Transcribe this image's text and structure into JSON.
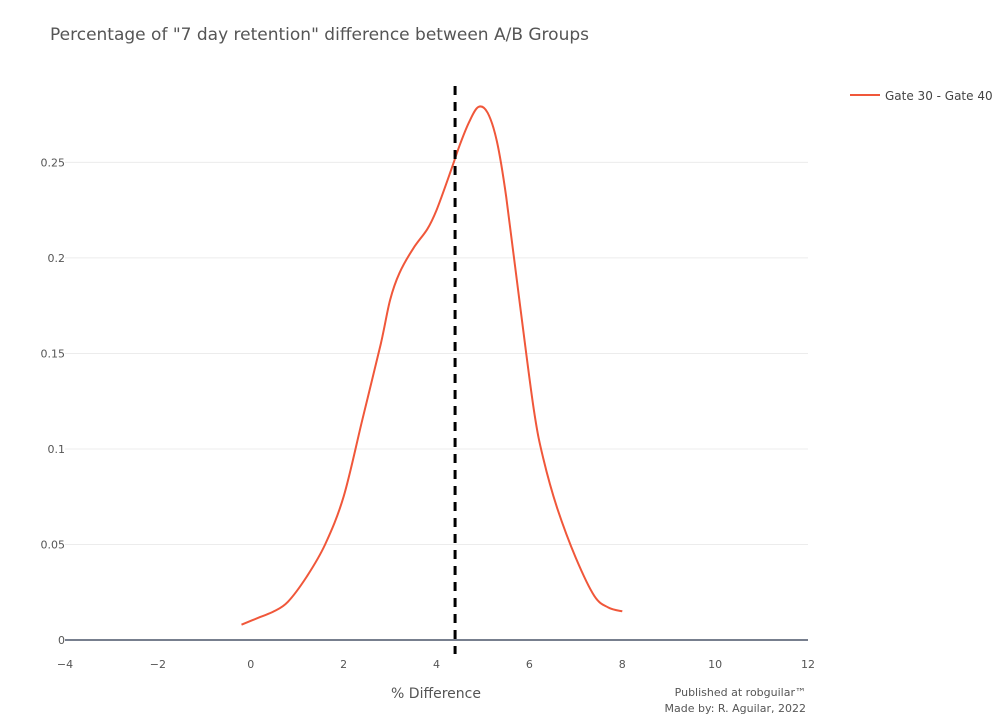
{
  "chart_data": {
    "type": "line",
    "title": "Percentage of \"7 day retention\" difference between A/B Groups",
    "xlabel": "% Difference",
    "ylabel": "",
    "xlim": [
      -4,
      12
    ],
    "ylim": [
      0,
      0.29
    ],
    "x_ticks": [
      -4,
      -2,
      0,
      2,
      4,
      6,
      8,
      10,
      12
    ],
    "x_tick_labels": [
      "−4",
      "−2",
      "0",
      "2",
      "4",
      "6",
      "8",
      "10",
      "12"
    ],
    "y_ticks": [
      0,
      0.05,
      0.1,
      0.15,
      0.2,
      0.25
    ],
    "y_tick_labels": [
      "0",
      "0.05",
      "0.1",
      "0.15",
      "0.2",
      "0.25"
    ],
    "grid": true,
    "legend_position": "top-right",
    "series": [
      {
        "name": "Gate 30 - Gate 40",
        "color": "#f0573a",
        "x": [
          -0.2,
          0.2,
          0.5,
          0.8,
          1.2,
          1.6,
          2.0,
          2.4,
          2.8,
          3.0,
          3.2,
          3.5,
          3.8,
          4.0,
          4.3,
          4.5,
          4.7,
          4.9,
          5.1,
          5.3,
          5.5,
          5.8,
          6.1,
          6.3,
          6.6,
          7.0,
          7.4,
          7.7,
          8.0
        ],
        "y": [
          0.008,
          0.012,
          0.015,
          0.02,
          0.033,
          0.05,
          0.075,
          0.115,
          0.155,
          0.178,
          0.192,
          0.205,
          0.215,
          0.225,
          0.245,
          0.259,
          0.271,
          0.279,
          0.276,
          0.261,
          0.232,
          0.175,
          0.12,
          0.095,
          0.069,
          0.043,
          0.023,
          0.017,
          0.015
        ]
      }
    ],
    "reference_line": {
      "x": 4.4,
      "style": "dashed",
      "color": "#000000"
    },
    "annotations": [
      "Published at robguilar™",
      "Made by:  R. Aguilar, 2022"
    ]
  }
}
